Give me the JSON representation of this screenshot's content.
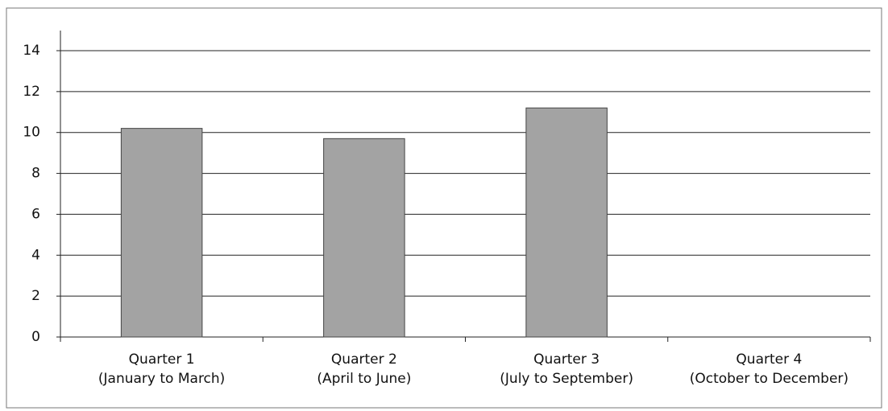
{
  "chart_data": {
    "type": "bar",
    "categories": [
      [
        "Quarter 1",
        "(January to March)"
      ],
      [
        "Quarter 2",
        "(April to June)"
      ],
      [
        "Quarter 3",
        "(July to September)"
      ],
      [
        "Quarter 4",
        "(October to December)"
      ]
    ],
    "values": [
      10.2,
      9.7,
      11.2,
      null
    ],
    "color": "#a3a3a3",
    "ylim": [
      0,
      14
    ],
    "yticks": [
      0,
      2,
      4,
      6,
      8,
      10,
      12,
      14
    ],
    "grid": true
  }
}
